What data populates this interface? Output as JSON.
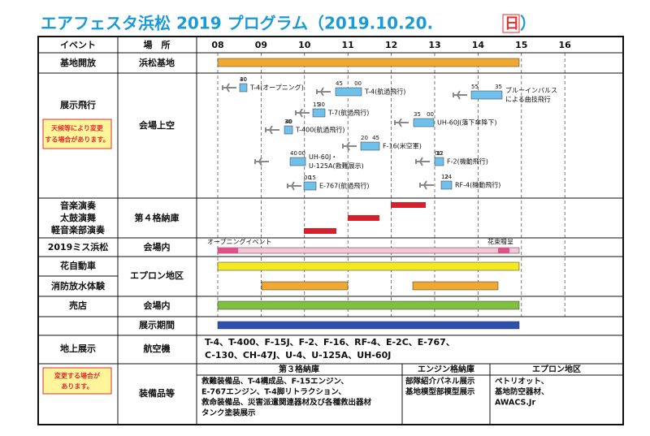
{
  "title": {
    "text": "エアフェスタ浜松 2019 プログラム（2019.10.20.",
    "day": "日",
    "close": "）"
  },
  "header": {
    "event": "イベント",
    "place": "場　所",
    "hours": [
      "08",
      "09",
      "10",
      "11",
      "12",
      "13",
      "14",
      "15",
      "16"
    ]
  },
  "rows": [
    {
      "event": "基地開放",
      "place": "浜松基地"
    },
    {
      "event": "展示飛行",
      "note": [
        "天候等により変更",
        "する場合があります。"
      ],
      "place": "会場上空",
      "flights": [
        {
          "name": [
            "T-4(オープニング)"
          ],
          "start": "30",
          "end": "40"
        },
        {
          "name": [
            "T-4(航過飛行)"
          ],
          "start": "45",
          "end": "00"
        },
        {
          "name": [
            "ブルーインパルス",
            "による曲技飛行"
          ],
          "start": "55",
          "end": "35"
        },
        {
          "name": [
            "T-7(航過飛行)"
          ],
          "start": "15",
          "end": "30"
        },
        {
          "name": [
            "T-400(航過飛行)"
          ],
          "start": "30",
          "end": "40"
        },
        {
          "name": [
            "UH-60J(落下傘降下)"
          ],
          "start": "35",
          "end": "00"
        },
        {
          "name": [
            "F-16(米空軍)"
          ],
          "start": "20",
          "end": "45"
        },
        {
          "name": [
            "UH-60J・",
            "U-125A(救難展示)"
          ],
          "start": "40",
          "end": "00"
        },
        {
          "name": [
            "F-2(機動飛行)"
          ],
          "start": "00",
          "end": "12"
        },
        {
          "name": [
            "E-767(航過飛行)"
          ],
          "start": "00",
          "end": "15"
        },
        {
          "name": [
            "RF-4(機動飛行)"
          ],
          "start": "12",
          "end": "24"
        }
      ]
    },
    {
      "event": [
        "音楽演奏",
        "太鼓演舞",
        "軽音楽部演奏"
      ],
      "place": "第４格納庫"
    },
    {
      "event": "2019ミス浜松",
      "place": "会場内",
      "labels": [
        "オープニングイベント",
        "花束贈呈"
      ]
    },
    {
      "event": "花自動車",
      "place": "エプロン地区"
    },
    {
      "event": "消防放水体験"
    },
    {
      "event": "売店",
      "place": "会場内"
    },
    {
      "event": "地上展示",
      "note": [
        "変更する場合が",
        "あります。"
      ],
      "period": "展示期間",
      "aircraft_label": "航空機",
      "aircraft": [
        "T-4、T-400、F-15J、F-2、F-16、RF-4、E-2C、E-767、",
        "C-130、CH-47J、U-4、U-125A、UH-60J"
      ],
      "equipment_label": "装備品等",
      "equipment": [
        {
          "area": "第３格納庫",
          "lines": [
            "救難装備品、T-4構成品、F-15エンジン、",
            "E-767エンジン、T-4脚リトラクション、",
            "救命装備品、災害派遣関連器材及び各種救出器材",
            "タンク塗装展示"
          ]
        },
        {
          "area": "エンジン格納庫",
          "lines": [
            "部隊紹介パネル展示",
            "基地模型部模型展示"
          ]
        },
        {
          "area": "エプロン地区",
          "lines": [
            "ペトリオット、",
            "基地防空器材、",
            "AWACS.Jr"
          ]
        }
      ]
    }
  ]
}
